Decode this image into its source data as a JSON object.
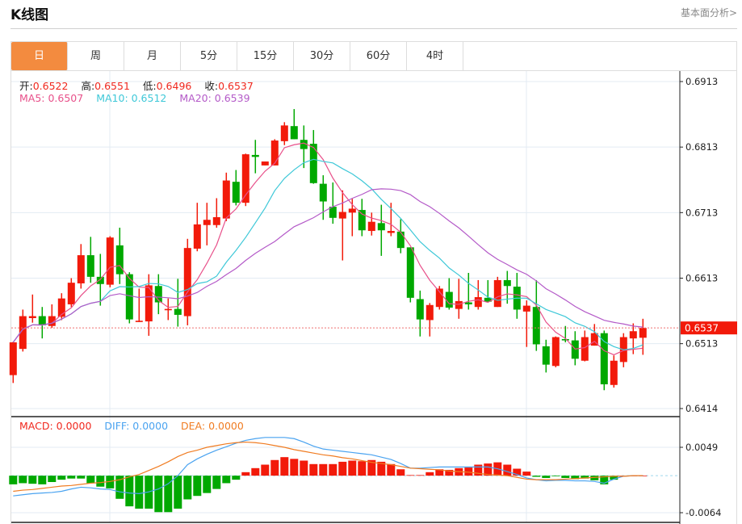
{
  "header": {
    "title": "K线图",
    "fundamental_link": "基本面分析>"
  },
  "tabs": [
    {
      "label": "日",
      "active": true
    },
    {
      "label": "周"
    },
    {
      "label": "月"
    },
    {
      "label": "5分"
    },
    {
      "label": "15分"
    },
    {
      "label": "30分"
    },
    {
      "label": "60分"
    },
    {
      "label": "4时"
    }
  ],
  "legend": {
    "open_label": "开:",
    "open": "0.6522",
    "high_label": "高:",
    "high": "0.6551",
    "low_label": "低:",
    "low": "0.6496",
    "close_label": "收:",
    "close": "0.6537",
    "ma5": "MA5: 0.6507",
    "ma10": "MA10: 0.6512",
    "ma20": "MA20: 0.6539"
  },
  "macd_legend": {
    "macd": "MACD: 0.0000",
    "diff": "DIFF: 0.0000",
    "dea": "DEA: 0.0000"
  },
  "colors": {
    "up": "#f21a0a",
    "down": "#00a800",
    "ma5": "#e8508a",
    "ma10": "#3ec8d8",
    "ma20": "#b45ac8",
    "diff": "#4aa3f0",
    "dea": "#f07c22",
    "active_tab": "#f38b3f"
  },
  "chart_data": [
    {
      "type": "candlestick",
      "up_color_meaning": "red = close above open",
      "ylim": [
        0.6414,
        0.6913
      ],
      "y_ticks": [
        "0.6913",
        "0.6813",
        "0.6713",
        "0.6613",
        "0.6513",
        "0.6414"
      ],
      "last_price": "0.6537",
      "ohlc": [
        [
          0.6465,
          0.6516,
          0.6453,
          0.6515
        ],
        [
          0.6505,
          0.6565,
          0.6501,
          0.6555
        ],
        [
          0.6552,
          0.6588,
          0.6545,
          0.6555
        ],
        [
          0.6555,
          0.6569,
          0.6521,
          0.6541
        ],
        [
          0.654,
          0.6573,
          0.6537,
          0.6555
        ],
        [
          0.6554,
          0.659,
          0.6549,
          0.6582
        ],
        [
          0.6573,
          0.6613,
          0.6569,
          0.6606
        ],
        [
          0.6605,
          0.6665,
          0.6597,
          0.6648
        ],
        [
          0.6648,
          0.6676,
          0.6606,
          0.6615
        ],
        [
          0.6615,
          0.665,
          0.6571,
          0.6604
        ],
        [
          0.6603,
          0.6677,
          0.6599,
          0.6675
        ],
        [
          0.6663,
          0.669,
          0.6604,
          0.6619
        ],
        [
          0.6619,
          0.6622,
          0.6544,
          0.655
        ],
        [
          0.6546,
          0.6597,
          0.6546,
          0.6548
        ],
        [
          0.6547,
          0.6619,
          0.6525,
          0.6602
        ],
        [
          0.6601,
          0.6619,
          0.6558,
          0.6576
        ],
        [
          0.6564,
          0.6582,
          0.6549,
          0.6566
        ],
        [
          0.6566,
          0.6612,
          0.6539,
          0.6557
        ],
        [
          0.6555,
          0.6673,
          0.6541,
          0.6659
        ],
        [
          0.6658,
          0.6728,
          0.6654,
          0.6695
        ],
        [
          0.6694,
          0.6728,
          0.6663,
          0.6702
        ],
        [
          0.6694,
          0.6735,
          0.669,
          0.6706
        ],
        [
          0.6704,
          0.6774,
          0.67,
          0.6762
        ],
        [
          0.676,
          0.6778,
          0.6724,
          0.6728
        ],
        [
          0.6728,
          0.6803,
          0.6723,
          0.6802
        ],
        [
          0.6801,
          0.6824,
          0.6773,
          0.6798
        ],
        [
          0.6785,
          0.6791,
          0.6785,
          0.6791
        ],
        [
          0.6785,
          0.6825,
          0.6785,
          0.6823
        ],
        [
          0.6822,
          0.6851,
          0.6816,
          0.6846
        ],
        [
          0.6845,
          0.6871,
          0.6825,
          0.6825
        ],
        [
          0.6824,
          0.6846,
          0.6781,
          0.681
        ],
        [
          0.6818,
          0.6839,
          0.6757,
          0.6758
        ],
        [
          0.6757,
          0.677,
          0.6702,
          0.673
        ],
        [
          0.6722,
          0.6759,
          0.6696,
          0.6705
        ],
        [
          0.6704,
          0.6747,
          0.664,
          0.6714
        ],
        [
          0.6713,
          0.6734,
          0.6677,
          0.6719
        ],
        [
          0.6717,
          0.6734,
          0.6677,
          0.6686
        ],
        [
          0.6685,
          0.6713,
          0.6678,
          0.6699
        ],
        [
          0.6697,
          0.6725,
          0.6647,
          0.6686
        ],
        [
          0.6682,
          0.6728,
          0.6677,
          0.6685
        ],
        [
          0.6684,
          0.6703,
          0.6651,
          0.6659
        ],
        [
          0.666,
          0.666,
          0.6576,
          0.6583
        ],
        [
          0.6581,
          0.6594,
          0.6524,
          0.655
        ],
        [
          0.6549,
          0.6575,
          0.6524,
          0.6572
        ],
        [
          0.6569,
          0.6601,
          0.6565,
          0.6597
        ],
        [
          0.6592,
          0.6613,
          0.6565,
          0.6568
        ],
        [
          0.6566,
          0.6612,
          0.6551,
          0.6578
        ],
        [
          0.6576,
          0.6621,
          0.6565,
          0.6573
        ],
        [
          0.6569,
          0.661,
          0.6565,
          0.6584
        ],
        [
          0.6583,
          0.661,
          0.6577,
          0.6577
        ],
        [
          0.6569,
          0.6615,
          0.6569,
          0.661
        ],
        [
          0.661,
          0.6624,
          0.6574,
          0.6601
        ],
        [
          0.66,
          0.6621,
          0.6551,
          0.6565
        ],
        [
          0.6562,
          0.6579,
          0.6508,
          0.6571
        ],
        [
          0.6569,
          0.661,
          0.6502,
          0.6512
        ],
        [
          0.6509,
          0.6519,
          0.6469,
          0.6481
        ],
        [
          0.6479,
          0.6524,
          0.6477,
          0.6523
        ],
        [
          0.652,
          0.654,
          0.6515,
          0.6518
        ],
        [
          0.6518,
          0.6532,
          0.648,
          0.649
        ],
        [
          0.6487,
          0.6533,
          0.6486,
          0.6523
        ],
        [
          0.651,
          0.6543,
          0.651,
          0.6529
        ],
        [
          0.6529,
          0.6533,
          0.6442,
          0.6451
        ],
        [
          0.645,
          0.6495,
          0.6446,
          0.6487
        ],
        [
          0.6485,
          0.6529,
          0.6477,
          0.6523
        ],
        [
          0.6521,
          0.6544,
          0.6497,
          0.6532
        ],
        [
          0.6522,
          0.6551,
          0.6496,
          0.6537
        ]
      ],
      "moving_averages": [
        "MA5",
        "MA10",
        "MA20"
      ]
    },
    {
      "type": "bar",
      "ylim": [
        -0.0064,
        0.0049
      ],
      "y_ticks": [
        "0.0049",
        "-0.0064"
      ],
      "macd": [
        -0.0015,
        -0.0013,
        -0.0014,
        -0.0015,
        -0.0011,
        -0.0007,
        -0.0005,
        -0.0005,
        -0.0013,
        -0.0019,
        -0.0022,
        -0.004,
        -0.0053,
        -0.0057,
        -0.0057,
        -0.0063,
        -0.0063,
        -0.0057,
        -0.0041,
        -0.0035,
        -0.003,
        -0.0023,
        -0.0013,
        -0.0007,
        0.0006,
        0.0013,
        0.0019,
        0.0027,
        0.0032,
        0.0029,
        0.0026,
        0.002,
        0.002,
        0.002,
        0.0024,
        0.0026,
        0.0025,
        0.0027,
        0.0024,
        0.002,
        0.0011,
        0.0001,
        0.0001,
        0.0006,
        0.0011,
        0.001,
        0.0013,
        0.0014,
        0.0019,
        0.0021,
        0.0023,
        0.0019,
        0.0012,
        0.0007,
        -0.0002,
        -0.0004,
        -0.0001,
        -0.0004,
        -0.0006,
        -0.0005,
        -0.0008,
        -0.0015,
        -0.0007,
        0,
        0,
        0
      ],
      "diff": [
        -0.0035,
        -0.0033,
        -0.0031,
        -0.003,
        -0.0029,
        -0.0027,
        -0.0023,
        -0.002,
        -0.0021,
        -0.0023,
        -0.0024,
        -0.0028,
        -0.003,
        -0.0031,
        -0.0028,
        -0.0023,
        -0.0014,
        0.0,
        0.0019,
        0.0029,
        0.0037,
        0.0044,
        0.005,
        0.0056,
        0.0061,
        0.0064,
        0.0066,
        0.0066,
        0.0066,
        0.0064,
        0.0058,
        0.0051,
        0.0046,
        0.0044,
        0.0042,
        0.004,
        0.0038,
        0.0036,
        0.0032,
        0.0028,
        0.0021,
        0.0013,
        0.0013,
        0.0014,
        0.0015,
        0.0015,
        0.0015,
        0.0015,
        0.0015,
        0.0015,
        0.0012,
        0.0007,
        0.0002,
        -0.0004,
        -0.0007,
        -0.0009,
        -0.0008,
        -0.0008,
        -0.0009,
        -0.0009,
        -0.001,
        -0.0013,
        -0.0006,
        -0.0001,
        0,
        0
      ],
      "dea": [
        -0.0027,
        -0.0025,
        -0.0024,
        -0.0022,
        -0.002,
        -0.0018,
        -0.0017,
        -0.0015,
        -0.0013,
        -0.0012,
        -0.001,
        -0.0007,
        -0.0002,
        0.0002,
        0.0009,
        0.0016,
        0.0024,
        0.0033,
        0.004,
        0.0044,
        0.0049,
        0.0052,
        0.0055,
        0.0057,
        0.0058,
        0.0057,
        0.0055,
        0.0052,
        0.0049,
        0.0045,
        0.0042,
        0.0039,
        0.0036,
        0.0034,
        0.0031,
        0.0029,
        0.0026,
        0.0023,
        0.0021,
        0.0019,
        0.0016,
        0.0013,
        0.0012,
        0.0011,
        0.001,
        0.0008,
        0.0007,
        0.0006,
        0.0004,
        0.0002,
        0.0001,
        0.0,
        -0.0003,
        -0.0006,
        -0.0007,
        -0.0007,
        -0.0007,
        -0.0006,
        -0.0005,
        -0.0004,
        -0.0003,
        -0.0002,
        -0.0001,
        -0.0001,
        0,
        0
      ]
    }
  ]
}
